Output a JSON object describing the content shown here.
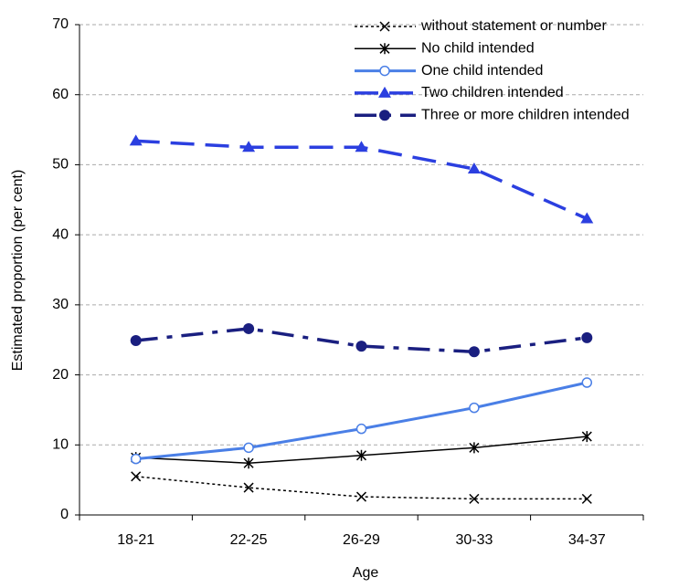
{
  "chart_data": {
    "type": "line",
    "x_label": "Age",
    "y_label": "Estimated proportion (per cent)",
    "categories": [
      "18-21",
      "22-25",
      "26-29",
      "30-33",
      "34-37"
    ],
    "series": [
      {
        "name": "without statement or number",
        "color": "#000000",
        "dash": "dotted",
        "marker": "x",
        "values": [
          5.5,
          3.9,
          2.6,
          2.3,
          2.3
        ]
      },
      {
        "name": "No child intended",
        "color": "#000000",
        "dash": "solid",
        "marker": "star",
        "values": [
          8.2,
          7.4,
          8.5,
          9.6,
          11.2
        ]
      },
      {
        "name": "One child intended",
        "color": "#4a7fe6",
        "dash": "solid-thick",
        "marker": "open-circle",
        "values": [
          8.0,
          9.6,
          12.3,
          15.3,
          18.9
        ]
      },
      {
        "name": "Two children intended",
        "color": "#2b3fe0",
        "dash": "long-dash",
        "marker": "triangle",
        "values": [
          53.4,
          52.5,
          52.5,
          49.4,
          42.3
        ]
      },
      {
        "name": "Three or more children intended",
        "color": "#1a1f80",
        "dash": "dash-dot",
        "marker": "circle",
        "values": [
          24.9,
          26.6,
          24.1,
          23.3,
          25.3
        ]
      }
    ],
    "ylim": [
      0,
      70
    ],
    "yticks": [
      0,
      10,
      20,
      30,
      40,
      50,
      60,
      70
    ],
    "grid": true,
    "legend": "upper right"
  }
}
